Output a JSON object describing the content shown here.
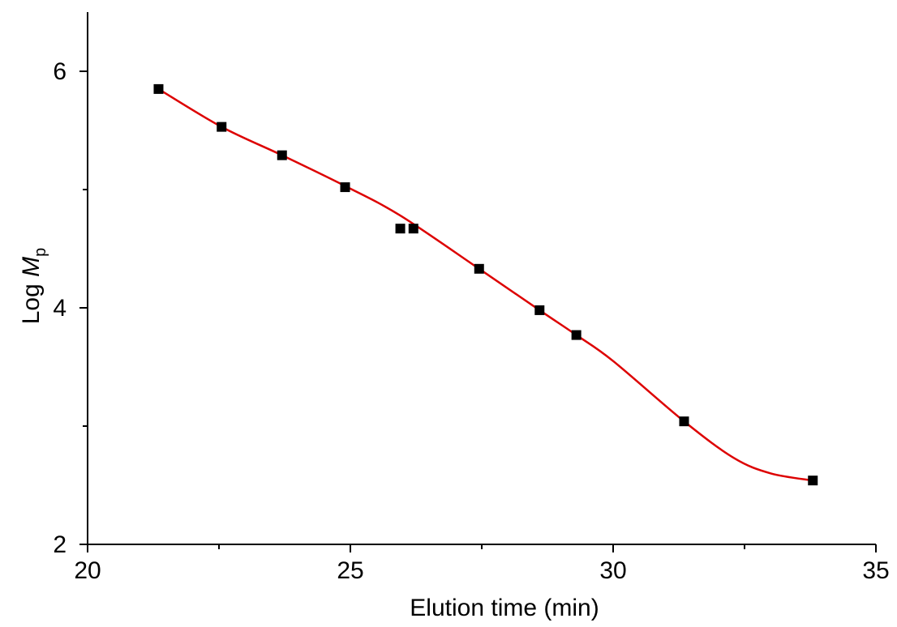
{
  "chart_data": {
    "type": "scatter",
    "title": "",
    "xlabel": "Elution time (min)",
    "ylabel": {
      "prefix": "Log ",
      "symbol": "M",
      "subscript": "p"
    },
    "xlim": [
      20,
      35
    ],
    "ylim": [
      2,
      6.5
    ],
    "x_ticks": [
      20,
      25,
      30,
      35
    ],
    "y_ticks": [
      2,
      4,
      6
    ],
    "x_minor_step": 2.5,
    "y_minor_step": 1,
    "grid": false,
    "series": [
      {
        "type": "scatter",
        "marker": "square",
        "color": "#000000",
        "x": [
          21.35,
          22.55,
          23.7,
          24.9,
          25.95,
          26.2,
          27.45,
          28.6,
          29.3,
          31.35,
          33.8
        ],
        "y": [
          5.85,
          5.53,
          5.29,
          5.02,
          4.67,
          4.67,
          4.33,
          3.98,
          3.77,
          3.04,
          2.54
        ]
      },
      {
        "type": "line",
        "color": "#dd0000",
        "x": [
          21.35,
          22.55,
          23.7,
          24.9,
          25.95,
          27.45,
          28.6,
          29.3,
          30.0,
          31.35,
          32.3,
          33.0,
          33.8
        ],
        "y": [
          5.85,
          5.53,
          5.29,
          5.03,
          4.78,
          4.33,
          3.98,
          3.77,
          3.55,
          3.04,
          2.73,
          2.6,
          2.54
        ]
      }
    ]
  }
}
